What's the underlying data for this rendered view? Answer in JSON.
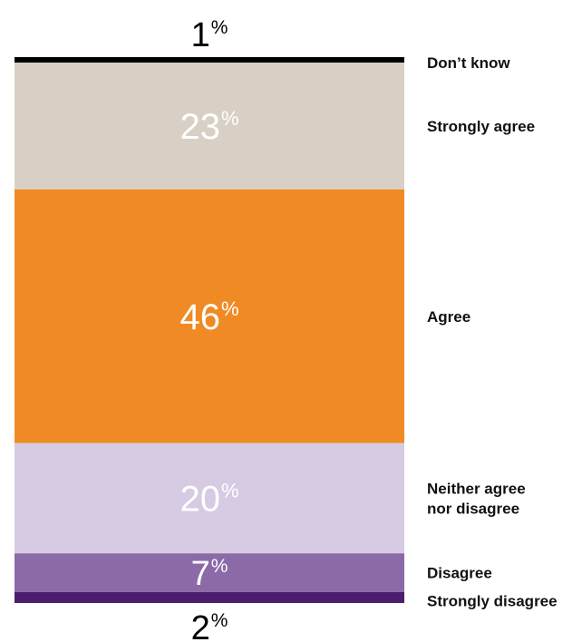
{
  "chart_data": {
    "type": "bar",
    "orientation": "stacked-single-column",
    "unit": "%",
    "categories": [
      "Don’t know",
      "Strongly agree",
      "Agree",
      "Neither agree nor disagree",
      "Disagree",
      "Strongly disagree"
    ],
    "values": [
      1,
      23,
      46,
      20,
      7,
      2
    ],
    "value_labels": [
      "1",
      "23",
      "46",
      "20",
      "7",
      "2"
    ],
    "category_lines": [
      [
        "Don’t know"
      ],
      [
        "Strongly agree"
      ],
      [
        "Agree"
      ],
      [
        "Neither agree",
        "nor disagree"
      ],
      [
        "Disagree"
      ],
      [
        "Strongly disagree"
      ]
    ],
    "colors": [
      "#000000",
      "#d8d0c4",
      "#f08a24",
      "#d6cbe3",
      "#8c6aa8",
      "#4b1d6e"
    ],
    "value_text_colors": [
      "#000000",
      "#ffffff",
      "#ffffff",
      "#ffffff",
      "#ffffff",
      "#000000"
    ],
    "value_label_placement": [
      "outside-top",
      "inside",
      "inside",
      "inside",
      "inside",
      "outside-bottom"
    ],
    "legend": "right",
    "grid": false,
    "title": "",
    "xlabel": "",
    "ylabel": ""
  }
}
